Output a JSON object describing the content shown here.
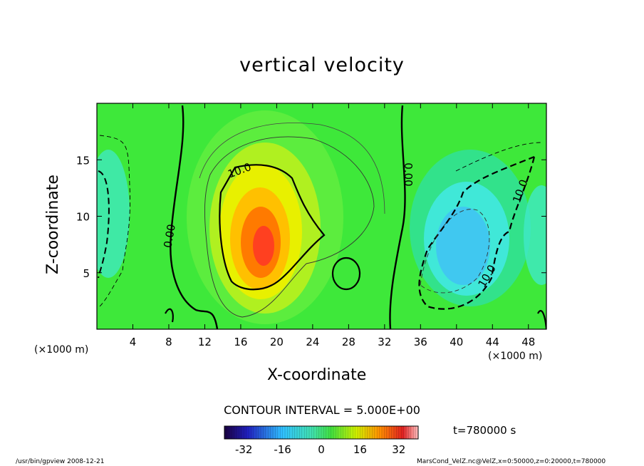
{
  "chart_data": {
    "type": "heatmap",
    "title": "vertical velocity",
    "xlabel": "X-coordinate",
    "ylabel": "Z-coordinate",
    "x_unit": "(×1000 m)",
    "y_unit": "(×1000 m)",
    "xlim": [
      0,
      50
    ],
    "ylim": [
      0,
      20
    ],
    "x_ticks": [
      4,
      8,
      12,
      16,
      20,
      24,
      28,
      32,
      36,
      40,
      44,
      48
    ],
    "y_ticks": [
      5,
      10,
      15
    ],
    "contour_labels": [
      "10.0",
      "0.00",
      "0.00",
      "10.0",
      "10.0"
    ],
    "contour_interval_text": "CONTOUR INTERVAL = 5.000E+00",
    "colorbar": {
      "ticks": [
        -32,
        -16,
        0,
        16,
        32
      ],
      "range": [
        -40,
        40
      ]
    },
    "grid": false
  },
  "time_label": "t=780000 s",
  "footer": {
    "left": "/usr/bin/gpview  2008-12-21",
    "right": "MarsCond_VelZ.nc@VelZ,x=0:50000,z=0:20000,t=780000"
  }
}
